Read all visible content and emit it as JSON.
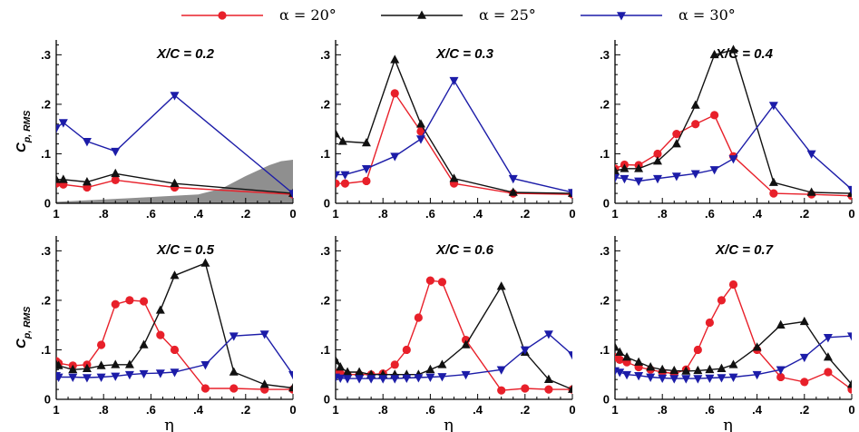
{
  "legend": [
    {
      "name": "α = 20°",
      "color": "#e8202a",
      "marker": "circle"
    },
    {
      "name": "α = 25°",
      "color": "#111111",
      "marker": "triangle-up"
    },
    {
      "name": "α = 30°",
      "color": "#1c1ca8",
      "marker": "triangle-down"
    }
  ],
  "colors": {
    "shade": "#8f8f8f"
  },
  "chart_data": [
    {
      "type": "line",
      "title": "X/C = 0.2",
      "xlabel": "",
      "ylabel": "Cp, RMS",
      "xlim": [
        1,
        0
      ],
      "ylim": [
        0,
        0.33
      ],
      "xticks": [
        1,
        0.8,
        0.6,
        0.4,
        0.2,
        0
      ],
      "yticks": [
        0,
        0.1,
        0.2,
        0.3
      ],
      "series": [
        {
          "name": "α = 20°",
          "x": [
            1,
            0.97,
            0.87,
            0.75,
            0.5,
            0
          ],
          "values": [
            0.04,
            0.038,
            0.032,
            0.047,
            0.032,
            0.018
          ]
        },
        {
          "name": "α = 25°",
          "x": [
            1,
            0.97,
            0.87,
            0.75,
            0.5,
            0
          ],
          "values": [
            0.048,
            0.048,
            0.043,
            0.06,
            0.04,
            0.02
          ]
        },
        {
          "name": "α = 30°",
          "x": [
            1,
            0.97,
            0.87,
            0.75,
            0.5,
            0
          ],
          "values": [
            0.152,
            0.163,
            0.125,
            0.105,
            0.218,
            0.02
          ]
        }
      ],
      "shaded_region": {
        "x": [
          1,
          0.7,
          0.4,
          0.3,
          0.2,
          0.1,
          0.05,
          0
        ],
        "upper": [
          0.003,
          0.01,
          0.018,
          0.03,
          0.055,
          0.077,
          0.085,
          0.088
        ],
        "lower": [
          -0.003,
          -0.01,
          -0.018,
          -0.03,
          -0.055,
          -0.077,
          -0.085,
          -0.088
        ]
      }
    },
    {
      "type": "line",
      "title": "X/C = 0.3",
      "xlabel": "",
      "ylabel": "",
      "xlim": [
        1,
        0
      ],
      "ylim": [
        0,
        0.33
      ],
      "xticks": [
        1,
        0.8,
        0.6,
        0.4,
        0.2,
        0
      ],
      "yticks": [
        0,
        0.1,
        0.2,
        0.3
      ],
      "series": [
        {
          "name": "α = 20°",
          "x": [
            1,
            0.96,
            0.87,
            0.75,
            0.64,
            0.5,
            0.25,
            0
          ],
          "values": [
            0.04,
            0.04,
            0.045,
            0.222,
            0.145,
            0.04,
            0.02,
            0.018
          ]
        },
        {
          "name": "α = 25°",
          "x": [
            1,
            0.97,
            0.87,
            0.75,
            0.64,
            0.5,
            0.25,
            0
          ],
          "values": [
            0.14,
            0.125,
            0.122,
            0.29,
            0.16,
            0.05,
            0.022,
            0.02
          ]
        },
        {
          "name": "α = 30°",
          "x": [
            1,
            0.96,
            0.87,
            0.75,
            0.64,
            0.5,
            0.25,
            0
          ],
          "values": [
            0.058,
            0.058,
            0.07,
            0.095,
            0.13,
            0.248,
            0.05,
            0.022
          ]
        }
      ]
    },
    {
      "type": "line",
      "title": "X/C = 0.4",
      "xlabel": "",
      "ylabel": "",
      "xlim": [
        1,
        0
      ],
      "ylim": [
        0,
        0.33
      ],
      "xticks": [
        1,
        0.8,
        0.6,
        0.4,
        0.2,
        0
      ],
      "yticks": [
        0,
        0.1,
        0.2,
        0.3
      ],
      "series": [
        {
          "name": "α = 20°",
          "x": [
            1,
            0.96,
            0.9,
            0.82,
            0.74,
            0.66,
            0.58,
            0.5,
            0.33,
            0.17,
            0
          ],
          "values": [
            0.07,
            0.078,
            0.077,
            0.1,
            0.14,
            0.16,
            0.178,
            0.095,
            0.02,
            0.018,
            0.015
          ]
        },
        {
          "name": "α = 25°",
          "x": [
            1,
            0.96,
            0.9,
            0.82,
            0.74,
            0.66,
            0.58,
            0.5,
            0.33,
            0.17,
            0
          ],
          "values": [
            0.065,
            0.07,
            0.07,
            0.085,
            0.12,
            0.198,
            0.3,
            0.31,
            0.042,
            0.022,
            0.02
          ]
        },
        {
          "name": "α = 30°",
          "x": [
            1,
            0.96,
            0.9,
            0.82,
            0.74,
            0.66,
            0.58,
            0.5,
            0.33,
            0.17,
            0
          ],
          "values": [
            0.052,
            0.05,
            0.045,
            0.05,
            0.055,
            0.06,
            0.068,
            0.09,
            0.198,
            0.1,
            0.028
          ]
        }
      ]
    },
    {
      "type": "line",
      "title": "X/C = 0.5",
      "xlabel": "η",
      "ylabel": "Cp, RMS",
      "xlim": [
        1,
        0
      ],
      "ylim": [
        0,
        0.33
      ],
      "xticks": [
        1,
        0.8,
        0.6,
        0.4,
        0.2,
        0
      ],
      "yticks": [
        0,
        0.1,
        0.2,
        0.3
      ],
      "series": [
        {
          "name": "α = 20°",
          "x": [
            1,
            0.99,
            0.93,
            0.87,
            0.81,
            0.75,
            0.69,
            0.63,
            0.56,
            0.5,
            0.37,
            0.25,
            0.12,
            0
          ],
          "values": [
            0.077,
            0.073,
            0.068,
            0.07,
            0.11,
            0.192,
            0.2,
            0.198,
            0.13,
            0.1,
            0.022,
            0.022,
            0.02,
            0.02
          ]
        },
        {
          "name": "α = 25°",
          "x": [
            1,
            0.99,
            0.93,
            0.87,
            0.81,
            0.75,
            0.69,
            0.63,
            0.56,
            0.5,
            0.37,
            0.25,
            0.12,
            0
          ],
          "values": [
            0.07,
            0.068,
            0.06,
            0.062,
            0.068,
            0.07,
            0.07,
            0.11,
            0.18,
            0.25,
            0.275,
            0.055,
            0.03,
            0.023
          ]
        },
        {
          "name": "α = 30°",
          "x": [
            1,
            0.99,
            0.93,
            0.87,
            0.81,
            0.75,
            0.69,
            0.63,
            0.56,
            0.5,
            0.37,
            0.25,
            0.12,
            0
          ],
          "values": [
            0.048,
            0.045,
            0.045,
            0.044,
            0.045,
            0.047,
            0.05,
            0.052,
            0.053,
            0.055,
            0.07,
            0.128,
            0.132,
            0.05
          ]
        }
      ]
    },
    {
      "type": "line",
      "title": "X/C = 0.6",
      "xlabel": "η",
      "ylabel": "",
      "xlim": [
        1,
        0
      ],
      "ylim": [
        0,
        0.33
      ],
      "xticks": [
        1,
        0.8,
        0.6,
        0.4,
        0.2,
        0
      ],
      "yticks": [
        0,
        0.1,
        0.2,
        0.3
      ],
      "series": [
        {
          "name": "α = 20°",
          "x": [
            1,
            0.98,
            0.95,
            0.9,
            0.85,
            0.8,
            0.75,
            0.7,
            0.65,
            0.6,
            0.55,
            0.45,
            0.3,
            0.2,
            0.1,
            0
          ],
          "values": [
            0.053,
            0.052,
            0.05,
            0.05,
            0.05,
            0.052,
            0.07,
            0.1,
            0.165,
            0.24,
            0.237,
            0.12,
            0.018,
            0.022,
            0.02,
            0.02
          ]
        },
        {
          "name": "α = 25°",
          "x": [
            1,
            0.98,
            0.95,
            0.9,
            0.85,
            0.8,
            0.75,
            0.7,
            0.65,
            0.6,
            0.55,
            0.45,
            0.3,
            0.2,
            0.1,
            0
          ],
          "values": [
            0.078,
            0.065,
            0.055,
            0.055,
            0.05,
            0.05,
            0.05,
            0.05,
            0.05,
            0.06,
            0.07,
            0.11,
            0.228,
            0.095,
            0.04,
            0.02
          ]
        },
        {
          "name": "α = 30°",
          "x": [
            1,
            0.98,
            0.95,
            0.9,
            0.85,
            0.8,
            0.75,
            0.7,
            0.65,
            0.6,
            0.55,
            0.45,
            0.3,
            0.2,
            0.1,
            0
          ],
          "values": [
            0.045,
            0.043,
            0.042,
            0.042,
            0.042,
            0.042,
            0.042,
            0.043,
            0.044,
            0.045,
            0.046,
            0.05,
            0.06,
            0.1,
            0.132,
            0.09
          ]
        }
      ]
    },
    {
      "type": "line",
      "title": "X/C = 0.7",
      "xlabel": "η",
      "ylabel": "",
      "xlim": [
        1,
        0
      ],
      "ylim": [
        0,
        0.33
      ],
      "xticks": [
        1,
        0.8,
        0.6,
        0.4,
        0.2,
        0
      ],
      "yticks": [
        0,
        0.1,
        0.2,
        0.3
      ],
      "series": [
        {
          "name": "α = 20°",
          "x": [
            1,
            0.98,
            0.95,
            0.9,
            0.85,
            0.8,
            0.75,
            0.7,
            0.65,
            0.6,
            0.55,
            0.5,
            0.4,
            0.3,
            0.2,
            0.1,
            0
          ],
          "values": [
            0.085,
            0.08,
            0.075,
            0.065,
            0.06,
            0.055,
            0.052,
            0.06,
            0.1,
            0.155,
            0.2,
            0.232,
            0.1,
            0.045,
            0.035,
            0.055,
            0.02
          ]
        },
        {
          "name": "α = 25°",
          "x": [
            1,
            0.98,
            0.95,
            0.9,
            0.85,
            0.8,
            0.75,
            0.7,
            0.65,
            0.6,
            0.55,
            0.5,
            0.4,
            0.3,
            0.2,
            0.1,
            0
          ],
          "values": [
            0.105,
            0.095,
            0.085,
            0.075,
            0.065,
            0.06,
            0.058,
            0.057,
            0.058,
            0.06,
            0.062,
            0.07,
            0.105,
            0.15,
            0.157,
            0.085,
            0.03
          ]
        },
        {
          "name": "α = 30°",
          "x": [
            1,
            0.98,
            0.95,
            0.9,
            0.85,
            0.8,
            0.75,
            0.7,
            0.65,
            0.6,
            0.55,
            0.5,
            0.4,
            0.3,
            0.2,
            0.1,
            0
          ],
          "values": [
            0.058,
            0.055,
            0.05,
            0.048,
            0.045,
            0.043,
            0.042,
            0.042,
            0.042,
            0.043,
            0.044,
            0.045,
            0.05,
            0.06,
            0.085,
            0.125,
            0.128
          ]
        }
      ]
    }
  ]
}
